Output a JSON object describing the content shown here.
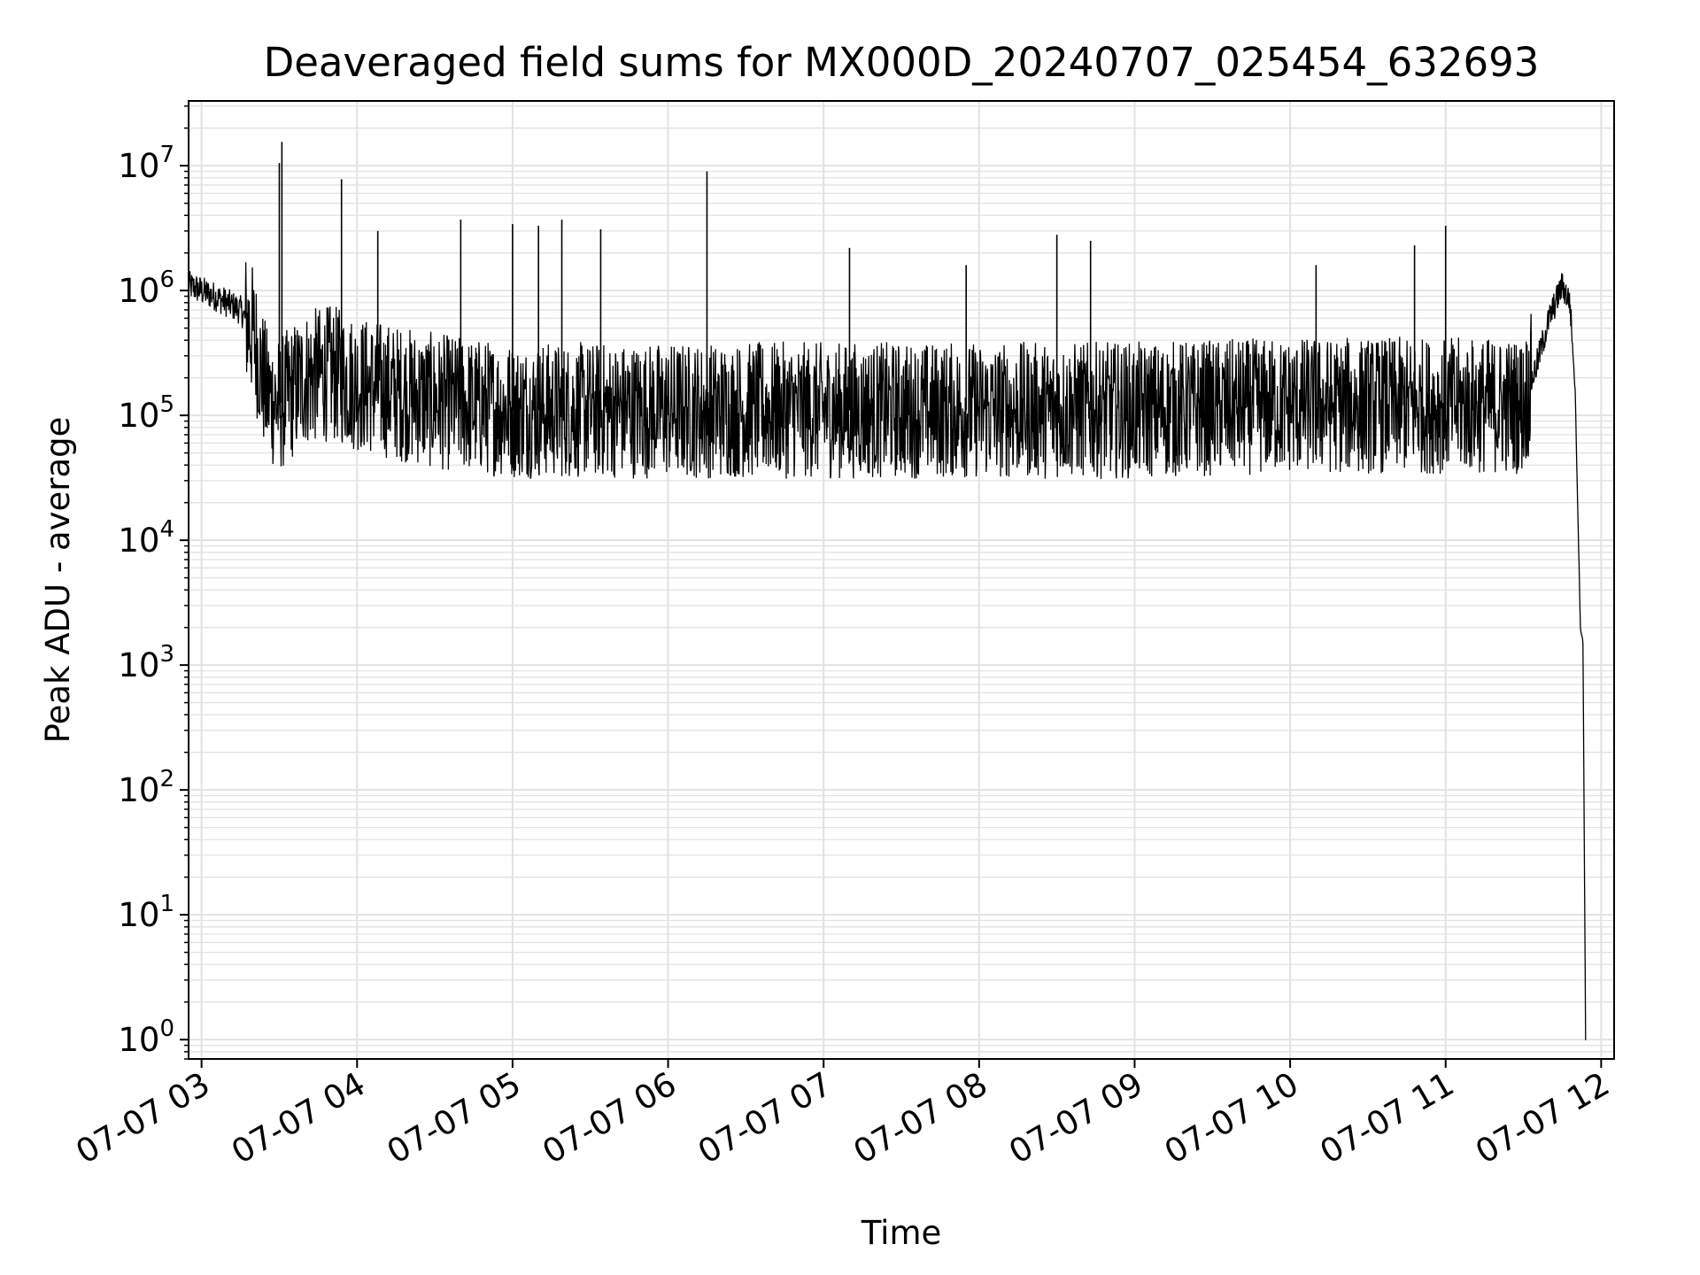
{
  "chart_data": {
    "type": "line",
    "title": "Deaveraged field sums for MX000D_20240707_025454_632693",
    "xlabel": "Time",
    "ylabel": "Peak ADU - average",
    "x_scale": "time",
    "y_scale": "log",
    "xlim": [
      "2024-07-07 02:55",
      "2024-07-07 12:05"
    ],
    "ylim": [
      0.7,
      33000000
    ],
    "grid": true,
    "line_color": "#000000",
    "grid_color": "#e2e2e2",
    "x_ticks": [
      "07-07 03",
      "07-07 04",
      "07-07 05",
      "07-07 06",
      "07-07 07",
      "07-07 08",
      "07-07 09",
      "07-07 10",
      "07-07 11",
      "07-07 12"
    ],
    "y_ticks": [
      {
        "value": 1,
        "base": "10",
        "exp": "0"
      },
      {
        "value": 10,
        "base": "10",
        "exp": "1"
      },
      {
        "value": 100,
        "base": "10",
        "exp": "2"
      },
      {
        "value": 1000,
        "base": "10",
        "exp": "3"
      },
      {
        "value": 10000,
        "base": "10",
        "exp": "4"
      },
      {
        "value": 100000,
        "base": "10",
        "exp": "5"
      },
      {
        "value": 1000000,
        "base": "10",
        "exp": "6"
      },
      {
        "value": 10000000,
        "base": "10",
        "exp": "7"
      }
    ],
    "series": [
      {
        "points": [
          [
            "2024-07-07 02:55",
            1100000
          ],
          [
            "2024-07-07 03:05",
            900000
          ],
          [
            "2024-07-07 03:15",
            700000
          ],
          [
            "2024-07-07 03:20",
            450000
          ],
          [
            "2024-07-07 03:25",
            150000
          ],
          [
            "2024-07-07 03:30",
            120000
          ],
          [
            "2024-07-07 03:40",
            200000
          ],
          [
            "2024-07-07 03:50",
            220000
          ],
          [
            "2024-07-07 04:00",
            180000
          ],
          [
            "2024-07-07 04:30",
            130000
          ],
          [
            "2024-07-07 05:00",
            110000
          ],
          [
            "2024-07-07 06:00",
            110000
          ],
          [
            "2024-07-07 07:00",
            110000
          ],
          [
            "2024-07-07 08:00",
            110000
          ],
          [
            "2024-07-07 09:00",
            110000
          ],
          [
            "2024-07-07 10:00",
            120000
          ],
          [
            "2024-07-07 11:00",
            120000
          ],
          [
            "2024-07-07 11:30",
            120000
          ],
          [
            "2024-07-07 11:35",
            250000
          ],
          [
            "2024-07-07 11:40",
            600000
          ],
          [
            "2024-07-07 11:45",
            1100000
          ],
          [
            "2024-07-07 11:48",
            800000
          ],
          [
            "2024-07-07 11:50",
            150000
          ],
          [
            "2024-07-07 11:52",
            2000
          ],
          [
            "2024-07-07 11:53",
            1500
          ],
          [
            "2024-07-07 11:54",
            1
          ]
        ],
        "spikes": [
          [
            "2024-07-07 03:30",
            10500000
          ],
          [
            "2024-07-07 03:31",
            15500000
          ],
          [
            "2024-07-07 03:54",
            7800000
          ],
          [
            "2024-07-07 04:08",
            3000000
          ],
          [
            "2024-07-07 04:40",
            3700000
          ],
          [
            "2024-07-07 05:00",
            3400000
          ],
          [
            "2024-07-07 05:10",
            3300000
          ],
          [
            "2024-07-07 05:19",
            3700000
          ],
          [
            "2024-07-07 05:34",
            3100000
          ],
          [
            "2024-07-07 06:15",
            9000000
          ],
          [
            "2024-07-07 07:10",
            2200000
          ],
          [
            "2024-07-07 07:55",
            1600000
          ],
          [
            "2024-07-07 08:30",
            2800000
          ],
          [
            "2024-07-07 08:43",
            2500000
          ],
          [
            "2024-07-07 10:10",
            1600000
          ],
          [
            "2024-07-07 10:48",
            2300000
          ],
          [
            "2024-07-07 11:00",
            3300000
          ]
        ]
      }
    ]
  }
}
